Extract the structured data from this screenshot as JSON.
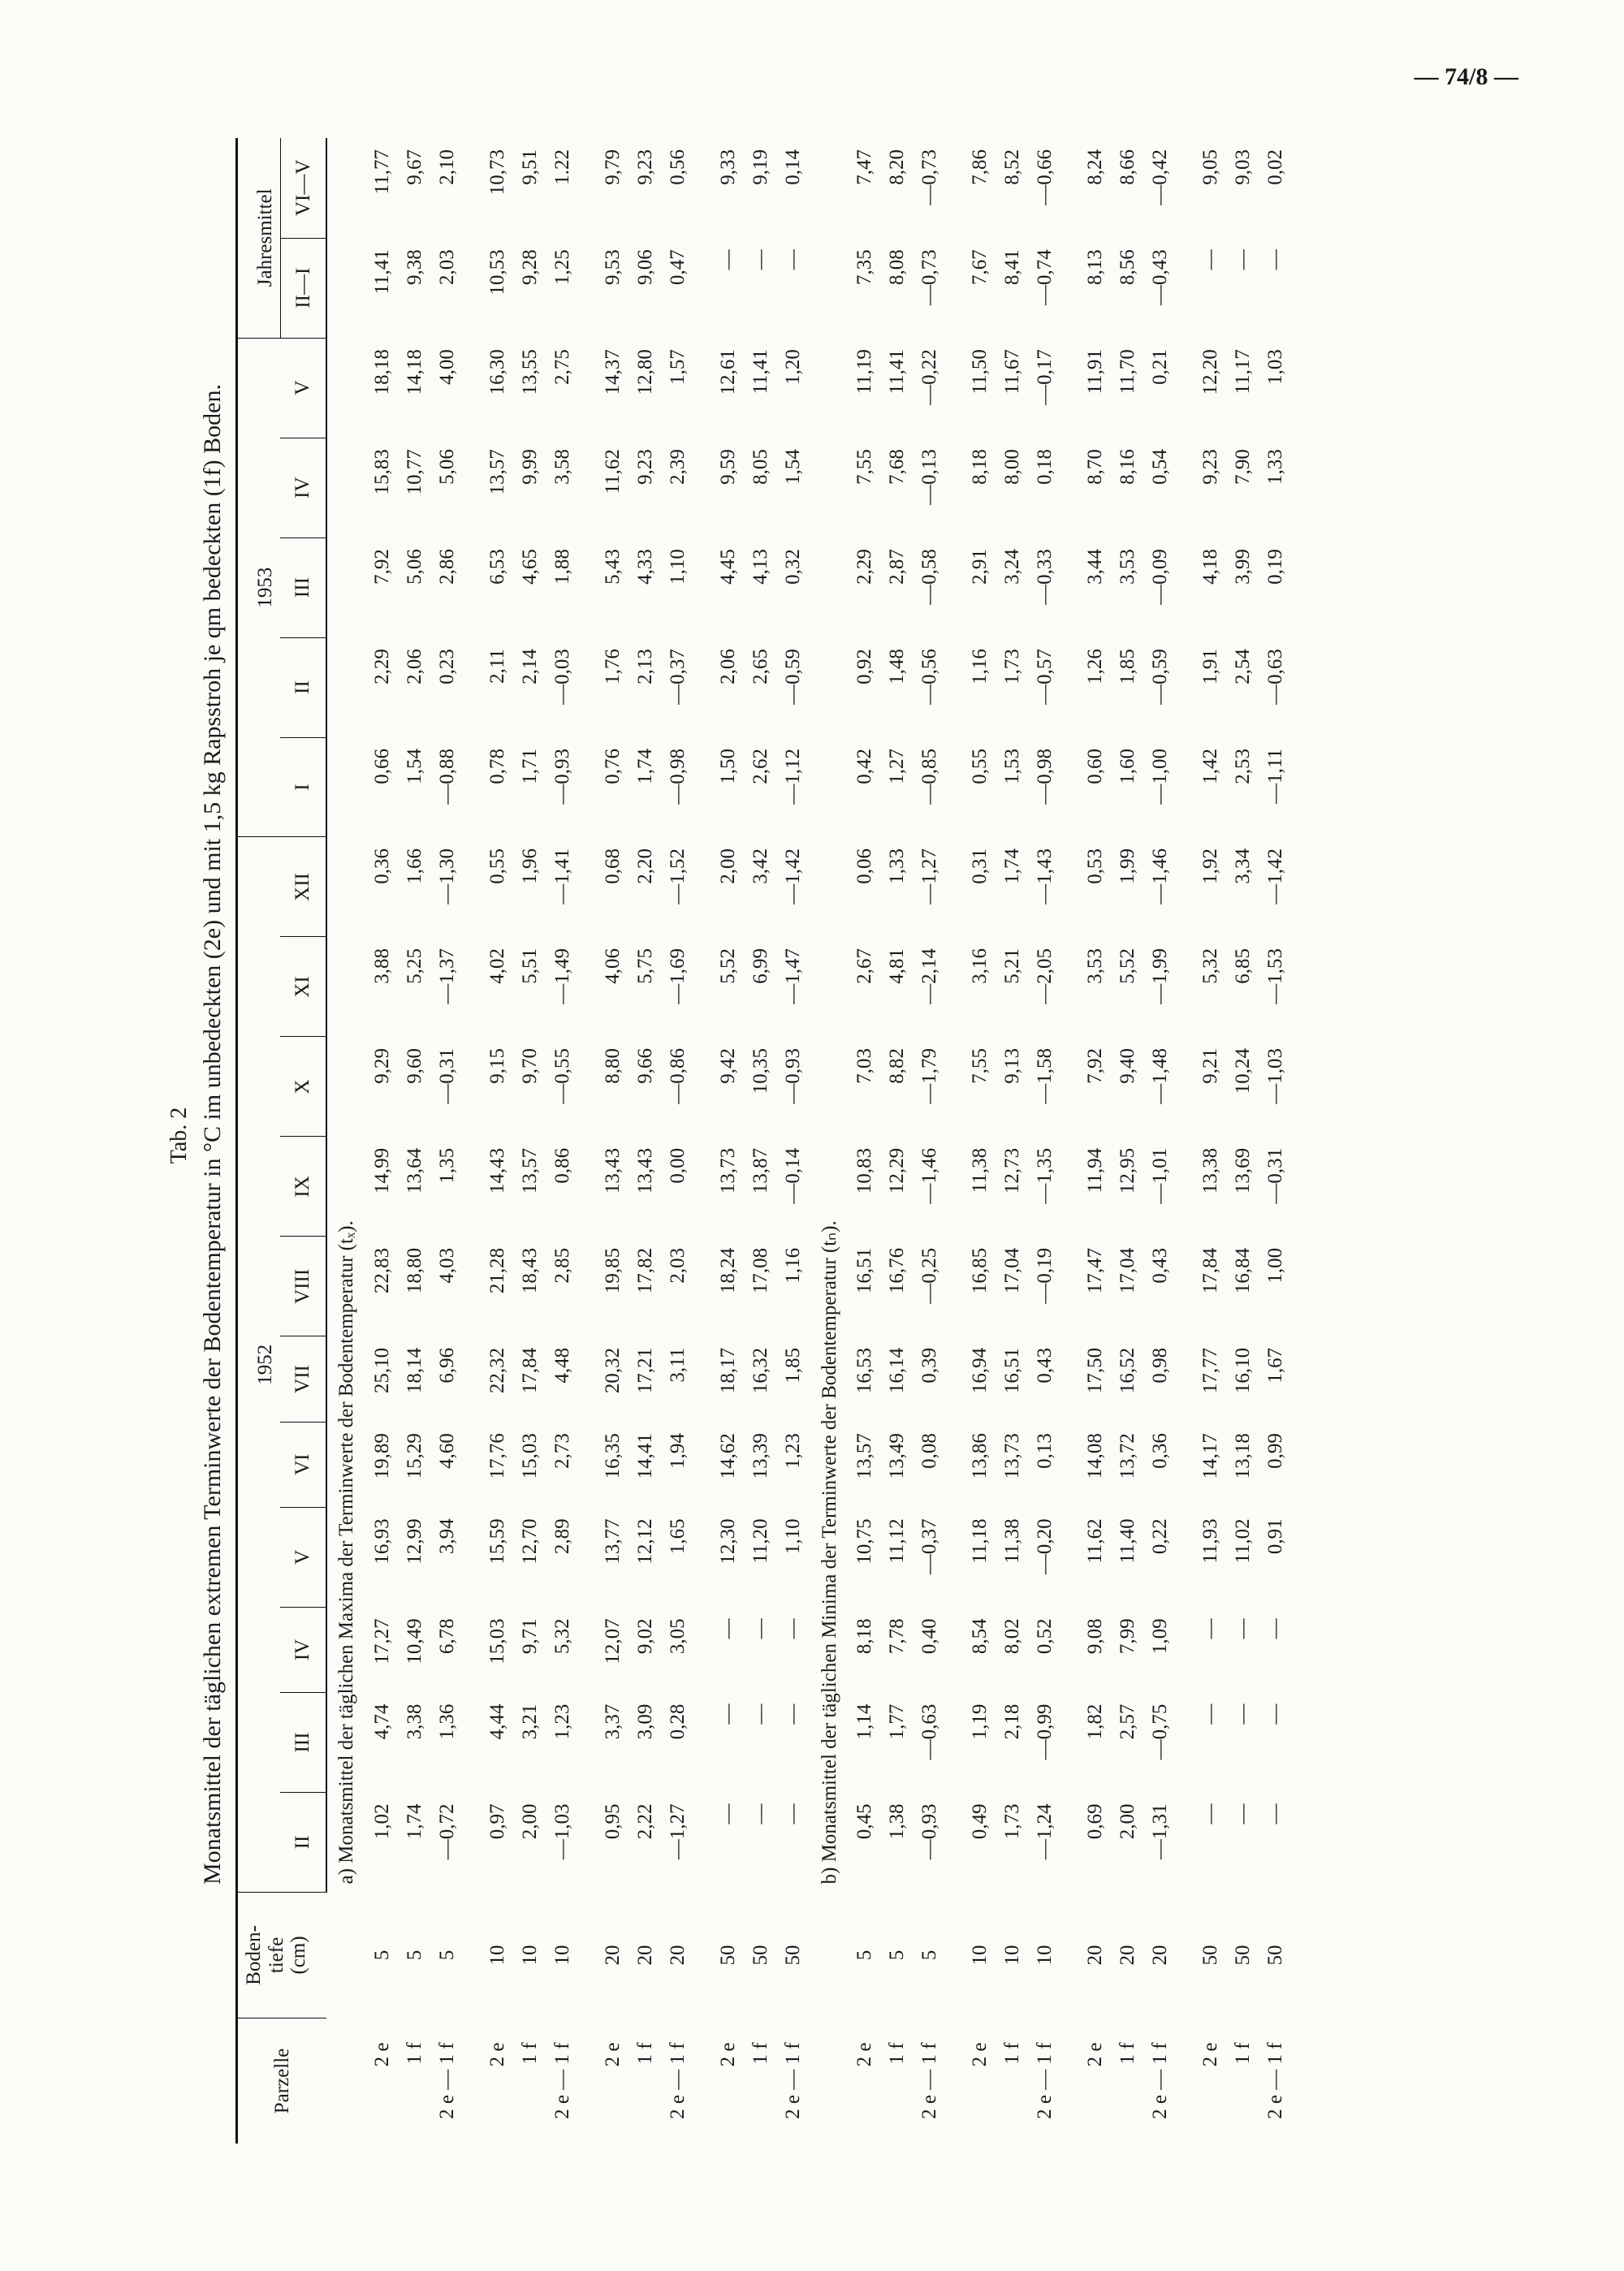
{
  "page_number": "— 74/8 —",
  "table_number": "Tab. 2",
  "title": "Monatsmittel der täglichen extremen Terminwerte der Bodentemperatur in °C im unbedeckten (2e) und mit 1,5 kg Rapsstroh je qm bedeckten (1f) Boden.",
  "header": {
    "parzelle": "Parzelle",
    "tiefe": [
      "Boden-",
      "tiefe",
      "(cm)"
    ],
    "year1": "1952",
    "year2": "1953",
    "jahresmittel": "Jahresmittel",
    "columns": [
      "II",
      "III",
      "IV",
      "V",
      "VI",
      "VII",
      "VIII",
      "IX",
      "X",
      "XI",
      "XII",
      "I",
      "II",
      "III",
      "IV",
      "V",
      "II—I",
      "VI—V"
    ]
  },
  "sections": [
    {
      "title": "a) Monatsmittel der täglichen Maxima der Terminwerte der Bodentemperatur (tₓ).",
      "groups": [
        {
          "rows": [
            {
              "parzelle": "2 e",
              "tiefe": "5",
              "values": [
                "1,02",
                "4,74",
                "17,27",
                "16,93",
                "19,89",
                "25,10",
                "22,83",
                "14,99",
                "9,29",
                "3,88",
                "0,36",
                "0,66",
                "2,29",
                "7,92",
                "15,83",
                "18,18",
                "11,41",
                "11,77"
              ]
            },
            {
              "parzelle": "1 f",
              "tiefe": "5",
              "values": [
                "1,74",
                "3,38",
                "10,49",
                "12,99",
                "15,29",
                "18,14",
                "18,80",
                "13,64",
                "9,60",
                "5,25",
                "1,66",
                "1,54",
                "2,06",
                "5,06",
                "10,77",
                "14,18",
                "9,38",
                "9,67"
              ]
            },
            {
              "parzelle": "2 e — 1 f",
              "tiefe": "5",
              "values": [
                "—0,72",
                "1,36",
                "6,78",
                "3,94",
                "4,60",
                "6,96",
                "4,03",
                "1,35",
                "—0,31",
                "—1,37",
                "—1,30",
                "—0,88",
                "0,23",
                "2,86",
                "5,06",
                "4,00",
                "2,03",
                "2,10"
              ]
            }
          ]
        },
        {
          "rows": [
            {
              "parzelle": "2 e",
              "tiefe": "10",
              "values": [
                "0,97",
                "4,44",
                "15,03",
                "15,59",
                "17,76",
                "22,32",
                "21,28",
                "14,43",
                "9,15",
                "4,02",
                "0,55",
                "0,78",
                "2,11",
                "6,53",
                "13,57",
                "16,30",
                "10,53",
                "10,73"
              ]
            },
            {
              "parzelle": "1 f",
              "tiefe": "10",
              "values": [
                "2,00",
                "3,21",
                "9,71",
                "12,70",
                "15,03",
                "17,84",
                "18,43",
                "13,57",
                "9,70",
                "5,51",
                "1,96",
                "1,71",
                "2,14",
                "4,65",
                "9,99",
                "13,55",
                "9,28",
                "9,51"
              ]
            },
            {
              "parzelle": "2 e — 1 f",
              "tiefe": "10",
              "values": [
                "—1,03",
                "1,23",
                "5,32",
                "2,89",
                "2,73",
                "4,48",
                "2,85",
                "0,86",
                "—0,55",
                "—1,49",
                "—1,41",
                "—0,93",
                "—0,03",
                "1,88",
                "3,58",
                "2,75",
                "1,25",
                "1.22"
              ]
            }
          ]
        },
        {
          "rows": [
            {
              "parzelle": "2 e",
              "tiefe": "20",
              "values": [
                "0,95",
                "3,37",
                "12,07",
                "13,77",
                "16,35",
                "20,32",
                "19,85",
                "13,43",
                "8,80",
                "4,06",
                "0,68",
                "0,76",
                "1,76",
                "5,43",
                "11,62",
                "14,37",
                "9,53",
                "9,79"
              ]
            },
            {
              "parzelle": "1 f",
              "tiefe": "20",
              "values": [
                "2,22",
                "3,09",
                "9,02",
                "12,12",
                "14,41",
                "17,21",
                "17,82",
                "13,43",
                "9,66",
                "5,75",
                "2,20",
                "1,74",
                "2,13",
                "4,33",
                "9,23",
                "12,80",
                "9,06",
                "9,23"
              ]
            },
            {
              "parzelle": "2 e — 1 f",
              "tiefe": "20",
              "values": [
                "—1,27",
                "0,28",
                "3,05",
                "1,65",
                "1,94",
                "3,11",
                "2,03",
                "0,00",
                "—0,86",
                "—1,69",
                "—1,52",
                "—0,98",
                "—0,37",
                "1,10",
                "2,39",
                "1,57",
                "0,47",
                "0,56"
              ]
            }
          ]
        },
        {
          "rows": [
            {
              "parzelle": "2 e",
              "tiefe": "50",
              "values": [
                "—",
                "—",
                "—",
                "12,30",
                "14,62",
                "18,17",
                "18,24",
                "13,73",
                "9,42",
                "5,52",
                "2,00",
                "1,50",
                "2,06",
                "4,45",
                "9,59",
                "12,61",
                "—",
                "9,33"
              ]
            },
            {
              "parzelle": "1 f",
              "tiefe": "50",
              "values": [
                "—",
                "—",
                "—",
                "11,20",
                "13,39",
                "16,32",
                "17,08",
                "13,87",
                "10,35",
                "6,99",
                "3,42",
                "2,62",
                "2,65",
                "4,13",
                "8,05",
                "11,41",
                "—",
                "9,19"
              ]
            },
            {
              "parzelle": "2 e — 1 f",
              "tiefe": "50",
              "values": [
                "—",
                "—",
                "—",
                "1,10",
                "1,23",
                "1,85",
                "1,16",
                "—0,14",
                "—0,93",
                "—1,47",
                "—1,42",
                "—1,12",
                "—0,59",
                "0,32",
                "1,54",
                "1,20",
                "—",
                "0,14"
              ]
            }
          ]
        }
      ]
    },
    {
      "title": "b) Monatsmittel der täglichen Minima der Terminwerte der Bodentemperatur (tₙ).",
      "groups": [
        {
          "rows": [
            {
              "parzelle": "2 e",
              "tiefe": "5",
              "values": [
                "0,45",
                "1,14",
                "8,18",
                "10,75",
                "13,57",
                "16,53",
                "16,51",
                "10,83",
                "7,03",
                "2,67",
                "0,06",
                "0,42",
                "0,92",
                "2,29",
                "7,55",
                "11,19",
                "7,35",
                "7,47"
              ]
            },
            {
              "parzelle": "1 f",
              "tiefe": "5",
              "values": [
                "1,38",
                "1,77",
                "7,78",
                "11,12",
                "13,49",
                "16,14",
                "16,76",
                "12,29",
                "8,82",
                "4,81",
                "1,33",
                "1,27",
                "1,48",
                "2,87",
                "7,68",
                "11,41",
                "8,08",
                "8,20"
              ]
            },
            {
              "parzelle": "2 e — 1 f",
              "tiefe": "5",
              "values": [
                "—0,93",
                "—0,63",
                "0,40",
                "—0,37",
                "0,08",
                "0,39",
                "—0,25",
                "—1,46",
                "—1,79",
                "—2,14",
                "—1,27",
                "—0,85",
                "—0,56",
                "—0,58",
                "—0,13",
                "—0,22",
                "—0,73",
                "—0,73"
              ]
            }
          ]
        },
        {
          "rows": [
            {
              "parzelle": "2 e",
              "tiefe": "10",
              "values": [
                "0,49",
                "1,19",
                "8,54",
                "11,18",
                "13,86",
                "16,94",
                "16,85",
                "11,38",
                "7,55",
                "3,16",
                "0,31",
                "0,55",
                "1,16",
                "2,91",
                "8,18",
                "11,50",
                "7,67",
                "7,86"
              ]
            },
            {
              "parzelle": "1 f",
              "tiefe": "10",
              "values": [
                "1,73",
                "2,18",
                "8,02",
                "11,38",
                "13,73",
                "16,51",
                "17,04",
                "12,73",
                "9,13",
                "5,21",
                "1,74",
                "1,53",
                "1,73",
                "3,24",
                "8,00",
                "11,67",
                "8,41",
                "8,52"
              ]
            },
            {
              "parzelle": "2 e — 1 f",
              "tiefe": "10",
              "values": [
                "—1,24",
                "—0,99",
                "0,52",
                "—0,20",
                "0,13",
                "0,43",
                "—0,19",
                "—1,35",
                "—1,58",
                "—2,05",
                "—1,43",
                "—0,98",
                "—0,57",
                "—0,33",
                "0,18",
                "—0,17",
                "—0,74",
                "—0,66"
              ]
            }
          ]
        },
        {
          "rows": [
            {
              "parzelle": "2 e",
              "tiefe": "20",
              "values": [
                "0,69",
                "1,82",
                "9,08",
                "11,62",
                "14,08",
                "17,50",
                "17,47",
                "11,94",
                "7,92",
                "3,53",
                "0,53",
                "0,60",
                "1,26",
                "3,44",
                "8,70",
                "11,91",
                "8,13",
                "8,24"
              ]
            },
            {
              "parzelle": "1 f",
              "tiefe": "20",
              "values": [
                "2,00",
                "2,57",
                "7,99",
                "11,40",
                "13,72",
                "16,52",
                "17,04",
                "12,95",
                "9,40",
                "5,52",
                "1,99",
                "1,60",
                "1,85",
                "3,53",
                "8,16",
                "11,70",
                "8,56",
                "8,66"
              ]
            },
            {
              "parzelle": "2 e — 1 f",
              "tiefe": "20",
              "values": [
                "—1,31",
                "—0,75",
                "1,09",
                "0,22",
                "0,36",
                "0,98",
                "0,43",
                "—1,01",
                "—1,48",
                "—1,99",
                "—1,46",
                "—1,00",
                "—0,59",
                "—0,09",
                "0,54",
                "0,21",
                "—0,43",
                "—0,42"
              ]
            }
          ]
        },
        {
          "rows": [
            {
              "parzelle": "2 e",
              "tiefe": "50",
              "values": [
                "—",
                "—",
                "—",
                "11,93",
                "14,17",
                "17,77",
                "17,84",
                "13,38",
                "9,21",
                "5,32",
                "1,92",
                "1,42",
                "1,91",
                "4,18",
                "9,23",
                "12,20",
                "—",
                "9,05"
              ]
            },
            {
              "parzelle": "1 f",
              "tiefe": "50",
              "values": [
                "—",
                "—",
                "—",
                "11,02",
                "13,18",
                "16,10",
                "16,84",
                "13,69",
                "10,24",
                "6,85",
                "3,34",
                "2,53",
                "2,54",
                "3,99",
                "7,90",
                "11,17",
                "—",
                "9,03"
              ]
            },
            {
              "parzelle": "2 e — 1 f",
              "tiefe": "50",
              "values": [
                "—",
                "—",
                "—",
                "0,91",
                "0,99",
                "1,67",
                "1,00",
                "—0,31",
                "—1,03",
                "—1,53",
                "—1,42",
                "—1,11",
                "—0,63",
                "0,19",
                "1,33",
                "1,03",
                "—",
                "0,02"
              ]
            }
          ]
        }
      ]
    }
  ]
}
